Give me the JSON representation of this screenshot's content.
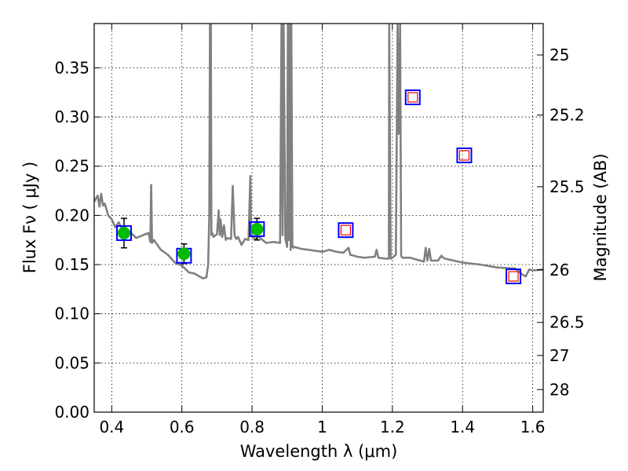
{
  "chart_data": {
    "type": "line",
    "title": "",
    "xlabel": "Wavelength  λ (μm)",
    "ylabel": "Flux  Fν  ( μJy )",
    "y2label": "Magnitude (AB)",
    "xlim": [
      0.35,
      1.63
    ],
    "ylim": [
      0.0,
      0.395
    ],
    "grid": true,
    "x_ticks": [
      {
        "value": 0.4,
        "label": "0.4"
      },
      {
        "value": 0.6,
        "label": "0.6"
      },
      {
        "value": 0.8,
        "label": "0.8"
      },
      {
        "value": 1.0,
        "label": "1"
      },
      {
        "value": 1.2,
        "label": "1.2"
      },
      {
        "value": 1.4,
        "label": "1.4"
      },
      {
        "value": 1.6,
        "label": "1.6"
      }
    ],
    "y_ticks": [
      {
        "value": 0.0,
        "label": "0.00"
      },
      {
        "value": 0.05,
        "label": "0.05"
      },
      {
        "value": 0.1,
        "label": "0.10"
      },
      {
        "value": 0.15,
        "label": "0.15"
      },
      {
        "value": 0.2,
        "label": "0.20"
      },
      {
        "value": 0.25,
        "label": "0.25"
      },
      {
        "value": 0.3,
        "label": "0.30"
      },
      {
        "value": 0.35,
        "label": "0.35"
      }
    ],
    "y2_ticks": [
      {
        "value": 25,
        "label": "25"
      },
      {
        "value": 25.2,
        "label": "25.2"
      },
      {
        "value": 25.5,
        "label": "25.5"
      },
      {
        "value": 26,
        "label": "26"
      },
      {
        "value": 26.5,
        "label": "26.5"
      },
      {
        "value": 27,
        "label": "27"
      },
      {
        "value": 28,
        "label": "28"
      }
    ],
    "model_color": "#808080",
    "model_spectrum": {
      "x": [
        0.35,
        0.36,
        0.365,
        0.37,
        0.375,
        0.38,
        0.39,
        0.4,
        0.41,
        0.42,
        0.43,
        0.44,
        0.45,
        0.47,
        0.49,
        0.505,
        0.51,
        0.5125,
        0.515,
        0.52,
        0.54,
        0.56,
        0.58,
        0.6,
        0.62,
        0.635,
        0.65,
        0.66,
        0.67,
        0.675,
        0.678,
        0.68,
        0.681,
        0.6825,
        0.684,
        0.687,
        0.69,
        0.7,
        0.705,
        0.708,
        0.71,
        0.715,
        0.72,
        0.725,
        0.73,
        0.74,
        0.745,
        0.75,
        0.752,
        0.755,
        0.76,
        0.77,
        0.78,
        0.79,
        0.795,
        0.797,
        0.8,
        0.81,
        0.82,
        0.84,
        0.86,
        0.88,
        0.884,
        0.887,
        0.89,
        0.895,
        0.9,
        0.902,
        0.905,
        0.908,
        0.91,
        0.912,
        0.915,
        0.918,
        0.92,
        0.94,
        0.96,
        0.98,
        1.0,
        1.02,
        1.04,
        1.06,
        1.075,
        1.08,
        1.1,
        1.12,
        1.15,
        1.155,
        1.16,
        1.18,
        1.19,
        1.191,
        1.195,
        1.196,
        1.2,
        1.21,
        1.215,
        1.218,
        1.222,
        1.225,
        1.228,
        1.23,
        1.25,
        1.27,
        1.29,
        1.295,
        1.3,
        1.305,
        1.31,
        1.33,
        1.34,
        1.345,
        1.35,
        1.4,
        1.45,
        1.5,
        1.55,
        1.57,
        1.58,
        1.59,
        1.6,
        1.63
      ],
      "y": [
        0.214,
        0.22,
        0.209,
        0.222,
        0.21,
        0.212,
        0.2,
        0.196,
        0.188,
        0.193,
        0.185,
        0.178,
        0.184,
        0.177,
        0.18,
        0.182,
        0.173,
        0.231,
        0.172,
        0.175,
        0.165,
        0.16,
        0.152,
        0.149,
        0.142,
        0.141,
        0.138,
        0.136,
        0.137,
        0.15,
        0.2,
        0.395,
        0.2,
        0.395,
        0.18,
        0.182,
        0.178,
        0.181,
        0.205,
        0.18,
        0.196,
        0.178,
        0.19,
        0.175,
        0.177,
        0.176,
        0.23,
        0.18,
        0.178,
        0.176,
        0.178,
        0.17,
        0.176,
        0.175,
        0.24,
        0.19,
        0.178,
        0.176,
        0.178,
        0.172,
        0.173,
        0.172,
        0.395,
        0.18,
        0.395,
        0.176,
        0.168,
        0.395,
        0.175,
        0.395,
        0.165,
        0.395,
        0.168,
        0.167,
        0.168,
        0.166,
        0.165,
        0.164,
        0.163,
        0.165,
        0.163,
        0.162,
        0.167,
        0.16,
        0.158,
        0.157,
        0.158,
        0.165,
        0.157,
        0.156,
        0.156,
        0.395,
        0.158,
        0.156,
        0.157,
        0.16,
        0.395,
        0.283,
        0.395,
        0.159,
        0.157,
        0.157,
        0.157,
        0.155,
        0.153,
        0.167,
        0.154,
        0.166,
        0.154,
        0.154,
        0.159,
        0.157,
        0.156,
        0.152,
        0.15,
        0.147,
        0.146,
        0.14,
        0.138,
        0.145,
        0.144,
        0.145
      ]
    },
    "observed": [
      {
        "x": 0.435,
        "y": 0.182,
        "err": 0.015
      },
      {
        "x": 0.606,
        "y": 0.161,
        "err": 0.01
      },
      {
        "x": 0.814,
        "y": 0.186,
        "err": 0.011
      }
    ],
    "model_boxes": [
      {
        "x": 0.435,
        "y": 0.182,
        "kind": "matched"
      },
      {
        "x": 0.606,
        "y": 0.159,
        "kind": "matched"
      },
      {
        "x": 0.814,
        "y": 0.186,
        "kind": "matched"
      },
      {
        "x": 1.067,
        "y": 0.185,
        "kind": "predicted"
      },
      {
        "x": 1.258,
        "y": 0.32,
        "kind": "predicted"
      },
      {
        "x": 1.405,
        "y": 0.261,
        "kind": "predicted"
      },
      {
        "x": 1.545,
        "y": 0.138,
        "kind": "predicted"
      }
    ],
    "colors": {
      "observed": "#00bb00",
      "box": "#0000ff",
      "predicted_inner": "#ff0000",
      "errorbar": "#000000"
    }
  }
}
